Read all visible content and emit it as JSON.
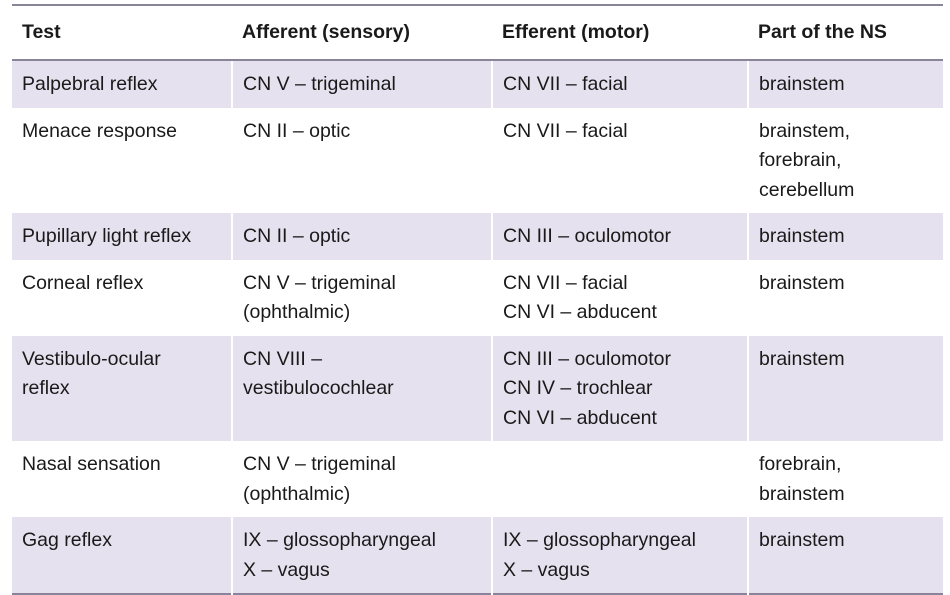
{
  "headers": [
    "Test",
    "Afferent (sensory)",
    "Efferent (motor)",
    "Part of the NS"
  ],
  "rows": [
    {
      "test": [
        "Palpebral reflex"
      ],
      "afferent": [
        "CN V – trigeminal"
      ],
      "efferent": [
        "CN VII – facial"
      ],
      "ns": [
        "brainstem"
      ]
    },
    {
      "test": [
        "Menace response"
      ],
      "afferent": [
        "CN II – optic"
      ],
      "efferent": [
        "CN VII – facial"
      ],
      "ns": [
        "brainstem,",
        "forebrain,",
        "cerebellum"
      ]
    },
    {
      "test": [
        "Pupillary light reflex"
      ],
      "afferent": [
        "CN II – optic"
      ],
      "efferent": [
        "CN III – oculomotor"
      ],
      "ns": [
        "brainstem"
      ]
    },
    {
      "test": [
        "Corneal reflex"
      ],
      "afferent": [
        "CN V – trigeminal",
        "(ophthalmic)"
      ],
      "efferent": [
        "CN VII – facial",
        "CN VI – abducent"
      ],
      "ns": [
        "brainstem"
      ]
    },
    {
      "test": [
        "Vestibulo-ocular",
        "reflex"
      ],
      "afferent": [
        "CN VIII –",
        "vestibulocochlear"
      ],
      "efferent": [
        "CN III – oculomotor",
        "CN IV – trochlear",
        "CN VI – abducent"
      ],
      "ns": [
        "brainstem"
      ]
    },
    {
      "test": [
        "Nasal sensation"
      ],
      "afferent": [
        "CN V – trigeminal",
        "(ophthalmic)"
      ],
      "efferent": [],
      "ns": [
        "forebrain,",
        "brainstem"
      ]
    },
    {
      "test": [
        "Gag reflex"
      ],
      "afferent": [
        "IX – glossopharyngeal",
        "X – vagus"
      ],
      "efferent": [
        "IX – glossopharyngeal",
        "X – vagus"
      ],
      "ns": [
        "brainstem"
      ]
    }
  ],
  "colors": {
    "shaded_row": "#e6e1ee",
    "rule": "#8a849a"
  }
}
